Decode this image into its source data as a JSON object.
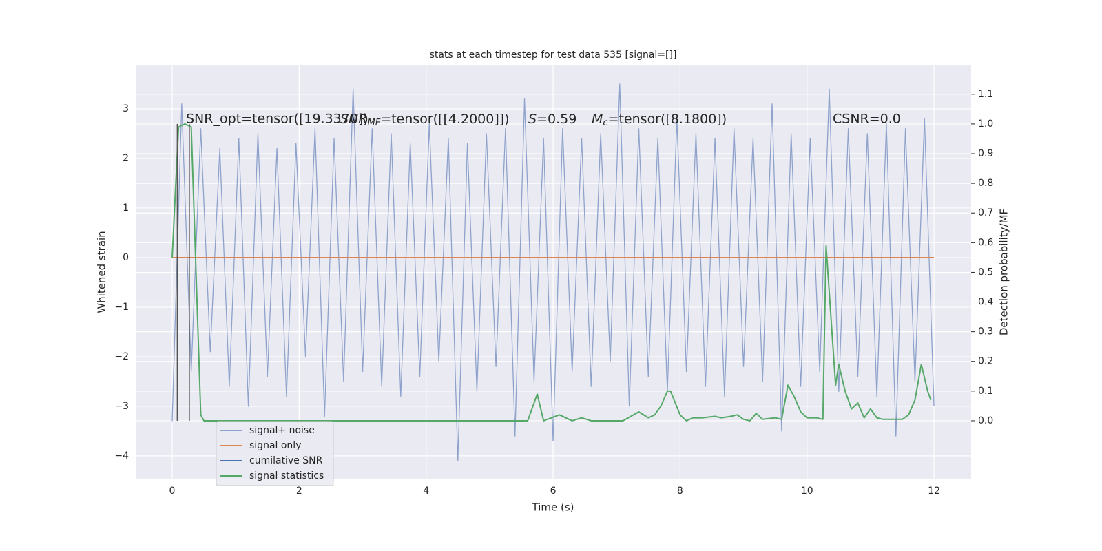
{
  "chart_data": {
    "type": "line",
    "title": "stats at each timestep for test data 535 [signal=[]]",
    "xlabel": "Time (s)",
    "ylabel": "Whitened strain",
    "y2label": "Detection probability/MF",
    "xlim": [
      -0.575,
      12.585
    ],
    "xticks": [
      0,
      2,
      4,
      6,
      8,
      10,
      12
    ],
    "ylim": [
      -4.46,
      3.875
    ],
    "yticks": [
      {
        "value": -4,
        "label": "−4"
      },
      {
        "value": -3,
        "label": "−3"
      },
      {
        "value": -2,
        "label": "−2"
      },
      {
        "value": -1,
        "label": "−1"
      },
      0,
      1,
      2,
      3
    ],
    "y2lim": [
      -0.195,
      1.197
    ],
    "y2ticks": [
      {
        "value": 0,
        "label": "0.0"
      },
      0.1,
      0.2,
      0.3,
      0.4,
      0.5,
      0.6,
      0.7,
      0.8,
      0.9,
      {
        "value": 1,
        "label": "1.0"
      },
      1.1
    ],
    "grid": true,
    "legend": "lower left",
    "series": [
      {
        "name": "signal+ noise",
        "color": "#8ea2cb",
        "x": [
          0,
          0.15,
          0.3,
          0.45,
          0.6,
          0.75,
          0.9,
          1.05,
          1.2,
          1.35,
          1.5,
          1.65,
          1.8,
          1.95,
          2.1,
          2.25,
          2.4,
          2.55,
          2.7,
          2.85,
          3,
          3.15,
          3.3,
          3.45,
          3.6,
          3.75,
          3.9,
          4.05,
          4.2,
          4.35,
          4.5,
          4.65,
          4.8,
          4.95,
          5.1,
          5.25,
          5.4,
          5.55,
          5.7,
          5.85,
          6,
          6.15,
          6.3,
          6.45,
          6.6,
          6.75,
          6.9,
          7.05,
          7.2,
          7.35,
          7.5,
          7.65,
          7.8,
          7.95,
          8.1,
          8.25,
          8.4,
          8.55,
          8.7,
          8.85,
          9,
          9.15,
          9.3,
          9.45,
          9.6,
          9.75,
          9.9,
          10.05,
          10.2,
          10.35,
          10.5,
          10.65,
          10.8,
          10.95,
          11.1,
          11.25,
          11.4,
          11.55,
          11.7,
          11.85,
          12
        ],
        "values": [
          -3.3,
          3.1,
          -2.3,
          2.6,
          -1.9,
          2.2,
          -2.6,
          2.4,
          -3.0,
          2.5,
          -2.4,
          2.2,
          -2.8,
          2.3,
          -2.0,
          2.6,
          -3.2,
          2.4,
          -2.5,
          3.4,
          -2.3,
          2.6,
          -2.6,
          2.5,
          -2.8,
          2.3,
          -2.4,
          2.7,
          -2.1,
          2.4,
          -4.1,
          2.3,
          -2.7,
          2.5,
          -2.2,
          2.6,
          -3.6,
          3.2,
          -2.5,
          2.4,
          -3.7,
          2.6,
          -2.3,
          2.4,
          -2.6,
          2.5,
          -2.1,
          3.5,
          -3.0,
          2.6,
          -2.4,
          2.4,
          -2.7,
          2.8,
          -2.3,
          2.5,
          -2.6,
          2.4,
          -2.8,
          2.6,
          -2.2,
          2.4,
          -2.5,
          3.1,
          -3.5,
          2.5,
          -2.6,
          2.4,
          -2.3,
          3.4,
          -2.7,
          2.6,
          -2.4,
          2.5,
          -2.8,
          2.7,
          -3.6,
          2.6,
          -2.5,
          2.8,
          -3.0
        ]
      },
      {
        "name": "signal only",
        "color": "#dd8452",
        "x": [
          0,
          12
        ],
        "values": [
          0,
          0
        ]
      },
      {
        "name": "cumilative SNR",
        "color": "#4c72b0",
        "x": [],
        "values": []
      },
      {
        "name": "signal statistics",
        "color": "#55a868",
        "axis": "y2",
        "x": [
          0,
          0.1,
          0.2,
          0.3,
          0.45,
          0.5,
          1,
          2,
          3,
          4,
          5,
          5.6,
          5.75,
          5.85,
          6.1,
          6.3,
          6.45,
          6.6,
          7.1,
          7.35,
          7.5,
          7.6,
          7.7,
          7.8,
          7.85,
          8,
          8.1,
          8.2,
          8.35,
          8.55,
          8.65,
          8.8,
          8.9,
          9,
          9.1,
          9.2,
          9.3,
          9.5,
          9.6,
          9.7,
          9.8,
          9.9,
          10,
          10.15,
          10.25,
          10.3,
          10.45,
          10.5,
          10.6,
          10.7,
          10.8,
          10.9,
          11,
          11.1,
          11.2,
          11.35,
          11.5,
          11.6,
          11.7,
          11.8,
          11.9,
          11.95
        ],
        "values": [
          0.55,
          0.99,
          1.0,
          0.99,
          0.02,
          0,
          0,
          0,
          0,
          0,
          0,
          0,
          0.09,
          0,
          0.02,
          0,
          0.01,
          0,
          0,
          0.03,
          0.01,
          0.02,
          0.05,
          0.1,
          0.1,
          0.02,
          0,
          0.01,
          0.01,
          0.015,
          0.01,
          0.015,
          0.02,
          0.005,
          0,
          0.025,
          0.005,
          0.01,
          0.005,
          0.12,
          0.08,
          0.03,
          0.01,
          0.01,
          0.005,
          0.59,
          0.12,
          0.19,
          0.1,
          0.04,
          0.06,
          0.01,
          0.04,
          0.01,
          0.005,
          0.005,
          0.005,
          0.02,
          0.07,
          0.19,
          0.1,
          0.07
        ]
      }
    ],
    "vlines": {
      "x": [
        0.08,
        0.27
      ],
      "y2range": [
        0,
        1
      ],
      "color": "#555555"
    },
    "annotations": {
      "opt": "SNR_opt=tensor([19.3370])",
      "mf": {
        "base": "SNR",
        "sub": "MF",
        "rest": "=tensor([[4.2000]])"
      },
      "s": {
        "base": "S",
        "rest": "=0.59"
      },
      "mc": {
        "base": "M",
        "sub": "c",
        "rest": "=tensor([8.1800])"
      },
      "csnr": "CSNR=0.0"
    }
  }
}
